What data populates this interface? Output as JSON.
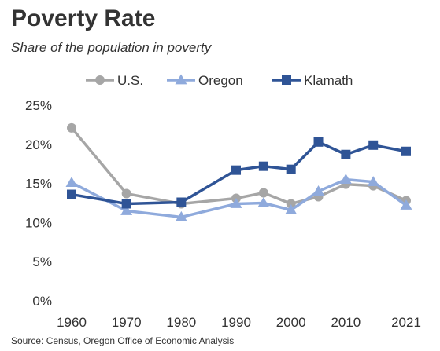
{
  "chart_data": {
    "type": "line",
    "title": "Poverty Rate",
    "subtitle": "Share of the population in poverty",
    "source": "Source: Census, Oregon Office of Economic Analysis",
    "xlabel": "",
    "ylabel": "",
    "x_ticks": [
      "1960",
      "1970",
      "1980",
      "1990",
      "2000",
      "2010",
      "2021"
    ],
    "x_tick_values": [
      1960,
      1970,
      1980,
      1990,
      2000,
      2010,
      2021
    ],
    "y_ticks": [
      "0%",
      "5%",
      "10%",
      "15%",
      "20%",
      "25%"
    ],
    "y_tick_values": [
      0,
      5,
      10,
      15,
      20,
      25
    ],
    "xlim": [
      1960,
      2021
    ],
    "ylim": [
      0,
      25
    ],
    "grid": false,
    "legend_position": "top",
    "x": [
      1960,
      1970,
      1980,
      1990,
      1995,
      2000,
      2005,
      2010,
      2015,
      2021
    ],
    "series": [
      {
        "name": "U.S.",
        "color": "#a6a6a6",
        "marker": "circle",
        "values": [
          22.1,
          13.7,
          12.4,
          13.1,
          13.8,
          12.4,
          13.3,
          14.9,
          14.7,
          12.8
        ]
      },
      {
        "name": "Oregon",
        "color": "#8faadc",
        "marker": "triangle",
        "values": [
          15.1,
          11.5,
          10.7,
          12.4,
          12.5,
          11.6,
          14.0,
          15.5,
          15.2,
          12.2
        ]
      },
      {
        "name": "Klamath",
        "color": "#2f5496",
        "marker": "square",
        "values": [
          13.6,
          12.4,
          12.6,
          16.7,
          17.2,
          16.8,
          20.3,
          18.7,
          19.9,
          19.1
        ]
      }
    ]
  }
}
